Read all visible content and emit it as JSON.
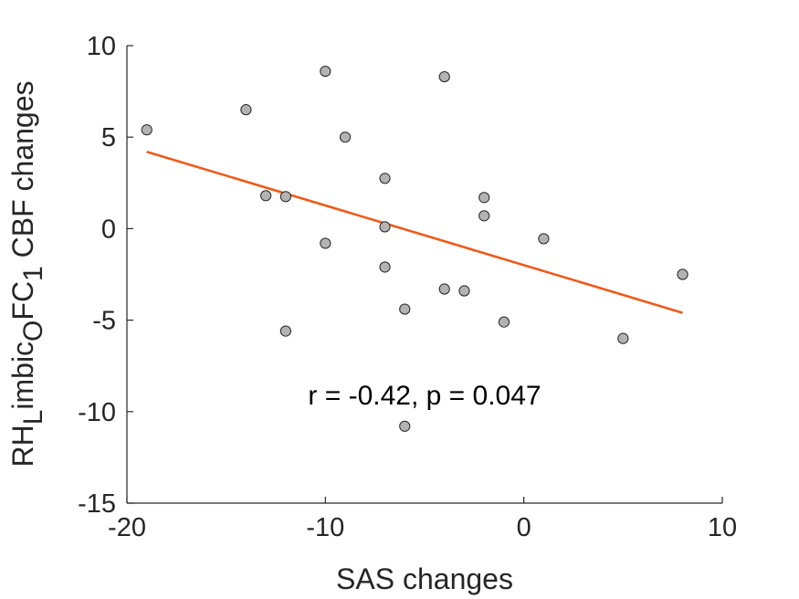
{
  "chart_data": {
    "type": "scatter",
    "xlabel": "SAS changes",
    "ylabel": {
      "parts": [
        {
          "text": "RH",
          "shift": "base"
        },
        {
          "text": "L",
          "shift": "sub"
        },
        {
          "text": "imbic",
          "shift": "base"
        },
        {
          "text": "O",
          "shift": "sub"
        },
        {
          "text": "FC",
          "shift": "base"
        },
        {
          "text": "1",
          "shift": "sub"
        },
        {
          "text": " CBF changes",
          "shift": "base"
        }
      ]
    },
    "xlim": [
      -20,
      10
    ],
    "ylim": [
      -15,
      10
    ],
    "xticks": [
      -20,
      -10,
      0,
      10
    ],
    "xtick_labels": [
      "-20",
      "-10",
      "0",
      "10"
    ],
    "yticks": [
      -15,
      -10,
      -5,
      0,
      5,
      10
    ],
    "ytick_labels": [
      "-15",
      "-10",
      "-5",
      "0",
      "5",
      "10"
    ],
    "grid": false,
    "points": [
      {
        "x": -19,
        "y": 5.4
      },
      {
        "x": -14,
        "y": 6.5
      },
      {
        "x": -13,
        "y": 1.8
      },
      {
        "x": -12,
        "y": 1.75
      },
      {
        "x": -12,
        "y": -5.6
      },
      {
        "x": -10,
        "y": 8.6
      },
      {
        "x": -10,
        "y": -0.8
      },
      {
        "x": -9,
        "y": 5.0
      },
      {
        "x": -7,
        "y": 2.75
      },
      {
        "x": -7,
        "y": 0.1
      },
      {
        "x": -7,
        "y": -2.1
      },
      {
        "x": -6,
        "y": -4.4
      },
      {
        "x": -6,
        "y": -10.8
      },
      {
        "x": -4,
        "y": 8.3
      },
      {
        "x": -4,
        "y": -3.3
      },
      {
        "x": -3,
        "y": -3.4
      },
      {
        "x": -2,
        "y": 1.7
      },
      {
        "x": -2,
        "y": 0.7
      },
      {
        "x": -1,
        "y": -5.1
      },
      {
        "x": 1,
        "y": -0.55
      },
      {
        "x": 5,
        "y": -6.0
      },
      {
        "x": 8,
        "y": -2.5
      }
    ],
    "fit_line": {
      "x": [
        -19,
        8
      ],
      "y": [
        4.2,
        -4.6
      ],
      "color": "#f05a19"
    },
    "annotation": "r = -0.42, p = 0.047",
    "marker_color": "#b3b3b3",
    "marker_edge": "#262626"
  }
}
